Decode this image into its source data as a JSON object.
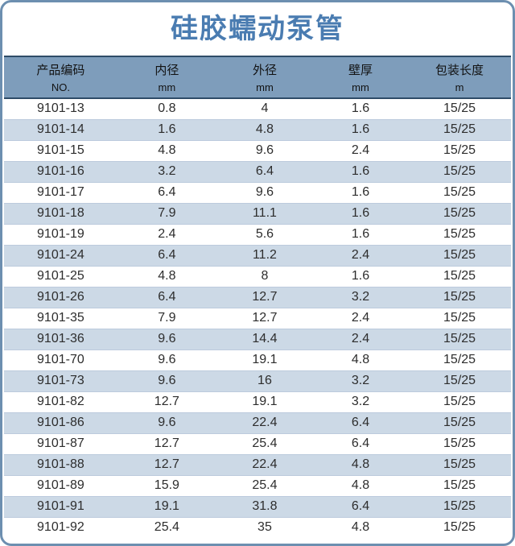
{
  "page": {
    "title": "硅胶蠕动泵管"
  },
  "colors": {
    "border": "#6d8fb0",
    "title_text": "#4a7cb1",
    "header_bg": "#7e9dbb",
    "header_rule": "#2f4c68",
    "zebra_row": "#ccd9e6",
    "row_text": "#2d2d2d",
    "header_text": "#121212"
  },
  "table": {
    "columns": [
      {
        "label": "产品编码",
        "unit": "NO."
      },
      {
        "label": "内径",
        "unit": "mm"
      },
      {
        "label": "外径",
        "unit": "mm"
      },
      {
        "label": "壁厚",
        "unit": "mm"
      },
      {
        "label": "包装长度",
        "unit": "m"
      }
    ],
    "rows": [
      [
        "9101-13",
        "0.8",
        "4",
        "1.6",
        "15/25"
      ],
      [
        "9101-14",
        "1.6",
        "4.8",
        "1.6",
        "15/25"
      ],
      [
        "9101-15",
        "4.8",
        "9.6",
        "2.4",
        "15/25"
      ],
      [
        "9101-16",
        "3.2",
        "6.4",
        "1.6",
        "15/25"
      ],
      [
        "9101-17",
        "6.4",
        "9.6",
        "1.6",
        "15/25"
      ],
      [
        "9101-18",
        "7.9",
        "11.1",
        "1.6",
        "15/25"
      ],
      [
        "9101-19",
        "2.4",
        "5.6",
        "1.6",
        "15/25"
      ],
      [
        "9101-24",
        "6.4",
        "11.2",
        "2.4",
        "15/25"
      ],
      [
        "9101-25",
        "4.8",
        "8",
        "1.6",
        "15/25"
      ],
      [
        "9101-26",
        "6.4",
        "12.7",
        "3.2",
        "15/25"
      ],
      [
        "9101-35",
        "7.9",
        "12.7",
        "2.4",
        "15/25"
      ],
      [
        "9101-36",
        "9.6",
        "14.4",
        "2.4",
        "15/25"
      ],
      [
        "9101-70",
        "9.6",
        "19.1",
        "4.8",
        "15/25"
      ],
      [
        "9101-73",
        "9.6",
        "16",
        "3.2",
        "15/25"
      ],
      [
        "9101-82",
        "12.7",
        "19.1",
        "3.2",
        "15/25"
      ],
      [
        "9101-86",
        "9.6",
        "22.4",
        "6.4",
        "15/25"
      ],
      [
        "9101-87",
        "12.7",
        "25.4",
        "6.4",
        "15/25"
      ],
      [
        "9101-88",
        "12.7",
        "22.4",
        "4.8",
        "15/25"
      ],
      [
        "9101-89",
        "15.9",
        "25.4",
        "4.8",
        "15/25"
      ],
      [
        "9101-91",
        "19.1",
        "31.8",
        "6.4",
        "15/25"
      ],
      [
        "9101-92",
        "25.4",
        "35",
        "4.8",
        "15/25"
      ]
    ]
  }
}
